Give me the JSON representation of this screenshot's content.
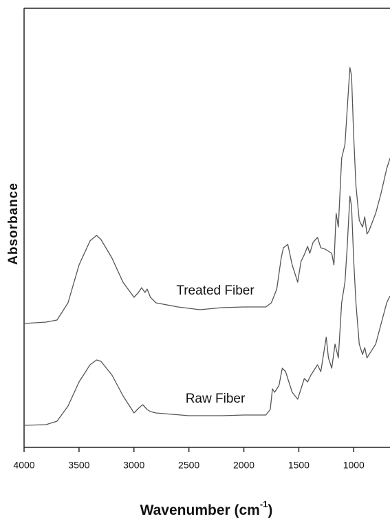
{
  "chart_data": {
    "type": "line",
    "xlabel": {
      "text": "Wavenumber (cm",
      "sup": "-1",
      "end": ")"
    },
    "ylabel": "Absorbance",
    "annotations": [
      "Treated Fiber",
      "Raw Fiber"
    ],
    "xlim": [
      4000,
      670
    ],
    "ylim": [
      0,
      640
    ],
    "xticks": [
      4000,
      3500,
      3000,
      2500,
      2000,
      1500,
      1000
    ],
    "series": [
      {
        "name": "Treated Fiber",
        "color": "#555555",
        "x": [
          4000,
          3800,
          3700,
          3600,
          3500,
          3400,
          3340,
          3300,
          3200,
          3100,
          3000,
          2960,
          2930,
          2900,
          2880,
          2850,
          2800,
          2600,
          2400,
          2200,
          2000,
          1800,
          1750,
          1700,
          1660,
          1640,
          1600,
          1560,
          1510,
          1480,
          1450,
          1420,
          1400,
          1370,
          1330,
          1300,
          1260,
          1200,
          1180,
          1160,
          1140,
          1110,
          1080,
          1060,
          1035,
          1020,
          1000,
          980,
          950,
          920,
          900,
          880,
          860,
          800,
          750,
          700,
          670
        ],
        "values": [
          180,
          182,
          185,
          210,
          265,
          300,
          308,
          302,
          275,
          240,
          218,
          225,
          232,
          225,
          230,
          218,
          210,
          204,
          200,
          203,
          204,
          204,
          210,
          230,
          275,
          290,
          295,
          265,
          240,
          270,
          280,
          292,
          282,
          298,
          305,
          290,
          288,
          282,
          265,
          340,
          320,
          420,
          440,
          490,
          552,
          540,
          450,
          380,
          330,
          320,
          335,
          310,
          315,
          340,
          370,
          405,
          420
        ]
      },
      {
        "name": "Raw Fiber",
        "color": "#555555",
        "x": [
          4000,
          3800,
          3700,
          3600,
          3500,
          3400,
          3340,
          3300,
          3200,
          3100,
          3000,
          2950,
          2920,
          2880,
          2850,
          2800,
          2500,
          2200,
          2000,
          1800,
          1760,
          1740,
          1720,
          1680,
          1650,
          1620,
          1560,
          1510,
          1480,
          1450,
          1420,
          1390,
          1370,
          1330,
          1300,
          1250,
          1230,
          1200,
          1170,
          1140,
          1110,
          1080,
          1060,
          1035,
          1020,
          1000,
          980,
          950,
          920,
          900,
          880,
          800,
          750,
          700,
          670
        ],
        "values": [
          32,
          33,
          38,
          60,
          95,
          120,
          127,
          125,
          105,
          75,
          50,
          58,
          62,
          55,
          52,
          50,
          46,
          46,
          47,
          47,
          55,
          85,
          80,
          90,
          115,
          110,
          80,
          70,
          85,
          100,
          95,
          105,
          110,
          120,
          110,
          160,
          130,
          115,
          150,
          130,
          210,
          240,
          290,
          365,
          350,
          270,
          210,
          150,
          135,
          145,
          130,
          150,
          180,
          210,
          220
        ]
      }
    ]
  }
}
